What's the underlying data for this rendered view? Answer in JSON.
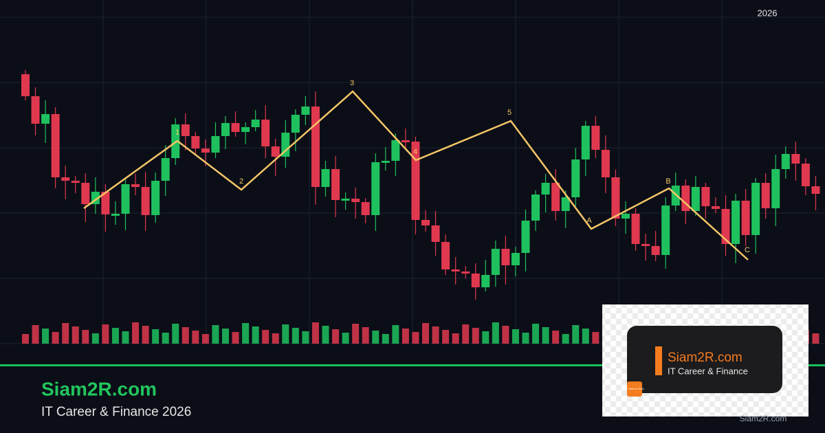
{
  "header": {
    "year": "2026"
  },
  "wave_labels": [
    "1",
    "2",
    "3",
    "4",
    "5",
    "A",
    "B",
    "C"
  ],
  "footer": {
    "brand": "Siam2R.com",
    "tagline": "IT Career & Finance 2026"
  },
  "badge": {
    "brand": "Siam2R.com",
    "tagline": "IT Career & Finance",
    "icon_text": "Siam to Rich",
    "caption": "Siam2R.com"
  }
}
